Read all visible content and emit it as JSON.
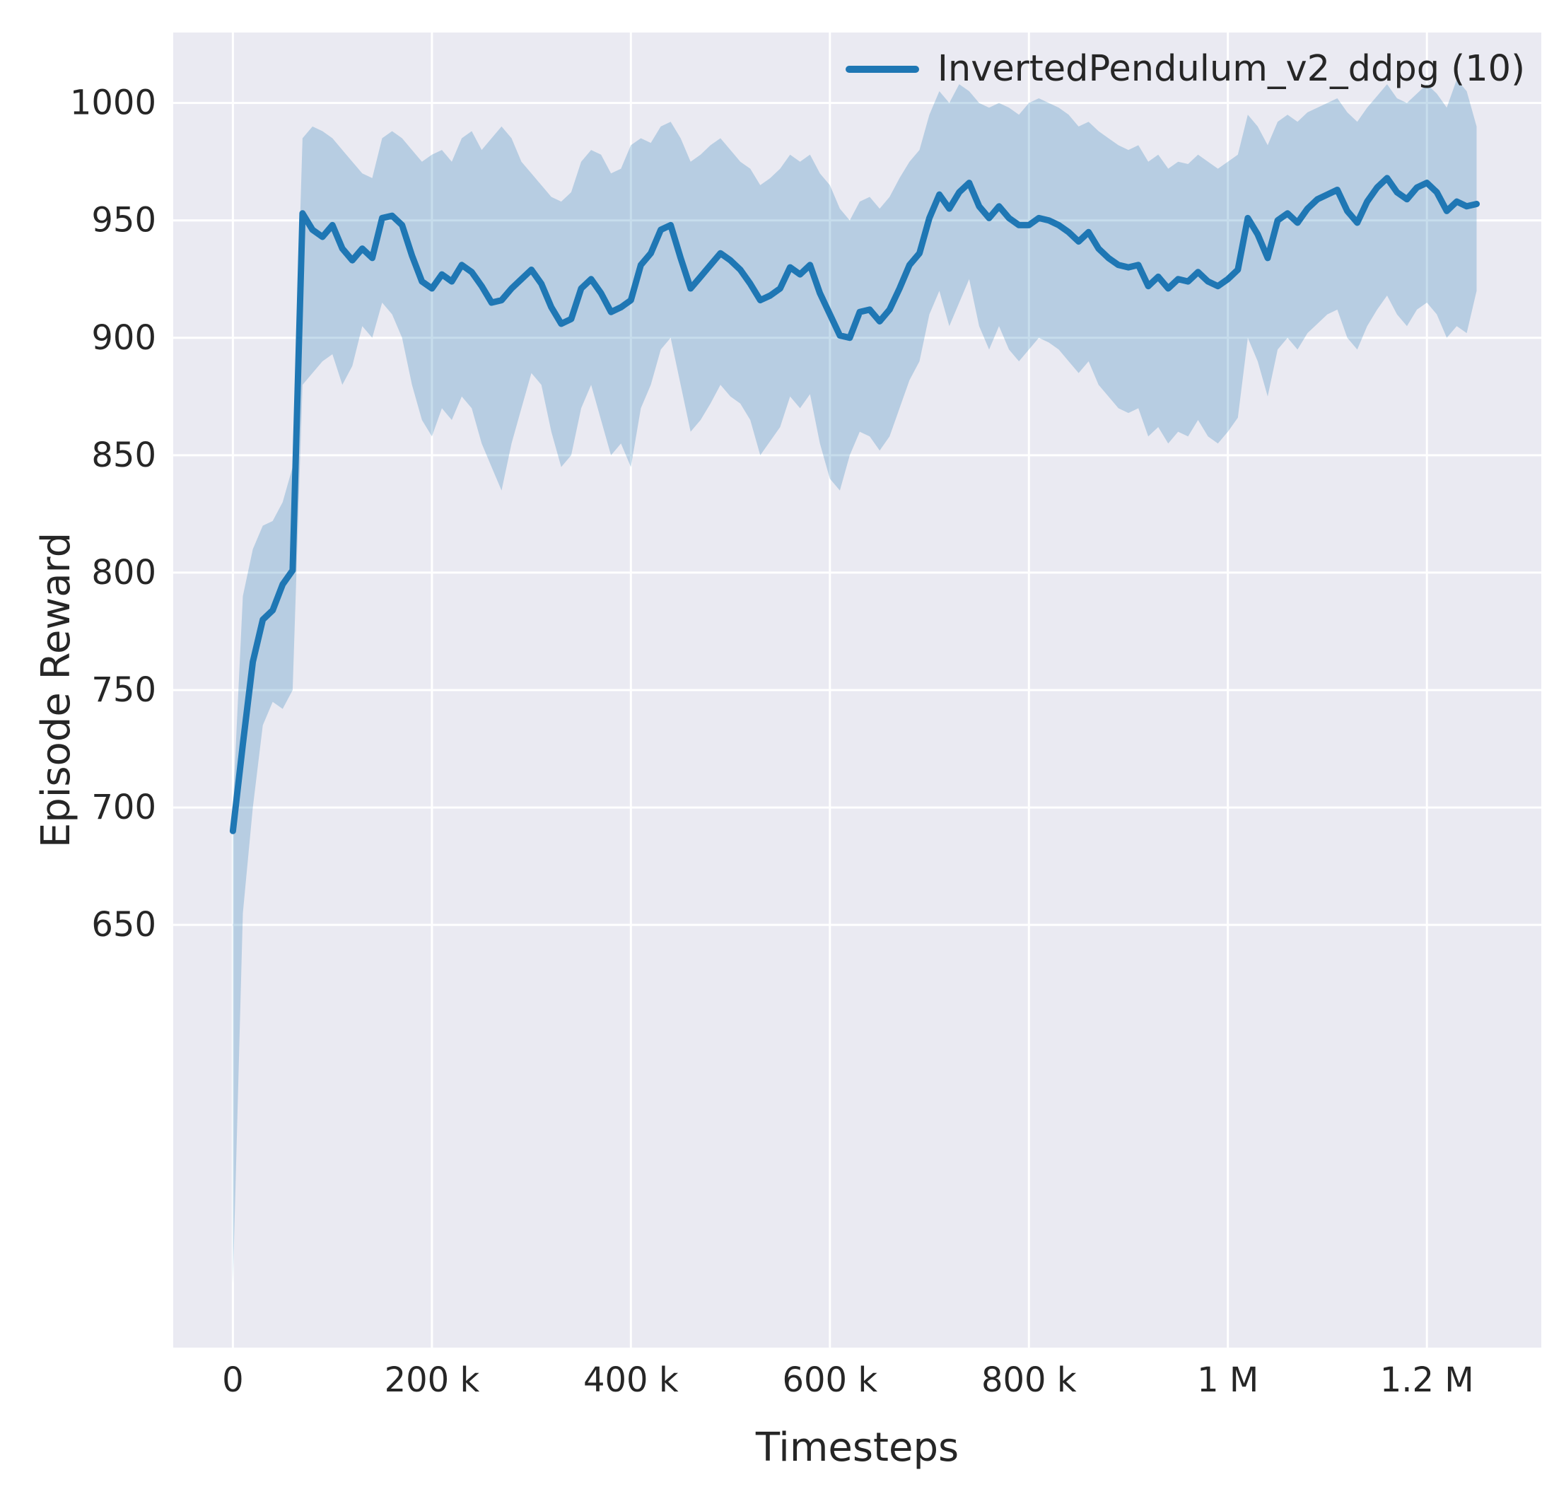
{
  "chart_data": {
    "type": "line",
    "title": "",
    "xlabel": "Timesteps",
    "ylabel": "Episode Reward",
    "grid": true,
    "legend_position": "upper right",
    "background_color": "#eaeaf2",
    "grid_color": "#ffffff",
    "text_color": "#262626",
    "xlim": [
      -60000,
      1315000
    ],
    "ylim": [
      470,
      1030
    ],
    "x_ticks": [
      {
        "value": 0,
        "label": "0"
      },
      {
        "value": 200000,
        "label": "200 k"
      },
      {
        "value": 400000,
        "label": "400 k"
      },
      {
        "value": 600000,
        "label": "600 k"
      },
      {
        "value": 800000,
        "label": "800 k"
      },
      {
        "value": 1000000,
        "label": "1 M"
      },
      {
        "value": 1200000,
        "label": "1.2 M"
      }
    ],
    "y_ticks": [
      {
        "value": 650,
        "label": "650"
      },
      {
        "value": 700,
        "label": "700"
      },
      {
        "value": 750,
        "label": "750"
      },
      {
        "value": 800,
        "label": "800"
      },
      {
        "value": 850,
        "label": "850"
      },
      {
        "value": 900,
        "label": "900"
      },
      {
        "value": 950,
        "label": "950"
      },
      {
        "value": 1000,
        "label": "1000"
      }
    ],
    "series": [
      {
        "name": "InvertedPendulum_v2_ddpg (10)",
        "color": "#1f77b4",
        "band_opacity": 0.25,
        "x": [
          0,
          10000,
          20000,
          30000,
          40000,
          50000,
          60000,
          70000,
          80000,
          90000,
          100000,
          110000,
          120000,
          130000,
          140000,
          150000,
          160000,
          170000,
          180000,
          190000,
          200000,
          210000,
          220000,
          230000,
          240000,
          250000,
          260000,
          270000,
          280000,
          290000,
          300000,
          310000,
          320000,
          330000,
          340000,
          350000,
          360000,
          370000,
          380000,
          390000,
          400000,
          410000,
          420000,
          430000,
          440000,
          450000,
          460000,
          470000,
          480000,
          490000,
          500000,
          510000,
          520000,
          530000,
          540000,
          550000,
          560000,
          570000,
          580000,
          590000,
          600000,
          610000,
          620000,
          630000,
          640000,
          650000,
          660000,
          670000,
          680000,
          690000,
          700000,
          710000,
          720000,
          730000,
          740000,
          750000,
          760000,
          770000,
          780000,
          790000,
          800000,
          810000,
          820000,
          830000,
          840000,
          850000,
          860000,
          870000,
          880000,
          890000,
          900000,
          910000,
          920000,
          930000,
          940000,
          950000,
          960000,
          970000,
          980000,
          990000,
          1000000,
          1010000,
          1020000,
          1030000,
          1040000,
          1050000,
          1060000,
          1070000,
          1080000,
          1090000,
          1100000,
          1110000,
          1120000,
          1130000,
          1140000,
          1150000,
          1160000,
          1170000,
          1180000,
          1190000,
          1200000,
          1210000,
          1220000,
          1230000,
          1240000,
          1250000
        ],
        "mean": [
          690,
          727,
          762,
          780,
          784,
          795,
          801,
          953,
          946,
          943,
          948,
          938,
          933,
          938,
          934,
          951,
          952,
          948,
          935,
          924,
          921,
          927,
          924,
          931,
          928,
          922,
          915,
          916,
          921,
          925,
          929,
          923,
          913,
          906,
          908,
          921,
          925,
          919,
          911,
          913,
          916,
          931,
          936,
          946,
          948,
          934,
          921,
          926,
          931,
          936,
          933,
          929,
          923,
          916,
          918,
          921,
          930,
          927,
          931,
          919,
          910,
          901,
          900,
          911,
          912,
          907,
          912,
          921,
          931,
          936,
          951,
          961,
          955,
          962,
          966,
          956,
          951,
          956,
          951,
          948,
          948,
          951,
          950,
          948,
          945,
          941,
          945,
          938,
          934,
          931,
          930,
          931,
          922,
          926,
          921,
          925,
          924,
          928,
          924,
          922,
          925,
          929,
          951,
          944,
          934,
          950,
          953,
          949,
          955,
          959,
          961,
          963,
          954,
          949,
          958,
          964,
          968,
          962,
          959,
          964,
          966,
          962,
          954,
          958,
          956,
          957
        ],
        "lower": [
          497,
          655,
          700,
          735,
          745,
          742,
          750,
          880,
          885,
          890,
          893,
          880,
          888,
          905,
          900,
          915,
          910,
          900,
          880,
          865,
          858,
          870,
          865,
          875,
          870,
          855,
          845,
          835,
          855,
          870,
          885,
          880,
          860,
          845,
          850,
          870,
          880,
          865,
          850,
          855,
          845,
          870,
          880,
          895,
          900,
          880,
          860,
          865,
          872,
          880,
          875,
          872,
          865,
          850,
          856,
          862,
          875,
          870,
          876,
          855,
          840,
          835,
          850,
          860,
          858,
          852,
          858,
          870,
          882,
          890,
          910,
          920,
          905,
          915,
          925,
          905,
          895,
          905,
          895,
          890,
          895,
          900,
          898,
          895,
          890,
          885,
          890,
          880,
          875,
          870,
          868,
          870,
          858,
          862,
          855,
          860,
          858,
          865,
          858,
          855,
          860,
          866,
          900,
          890,
          875,
          895,
          900,
          895,
          902,
          906,
          910,
          912,
          900,
          895,
          905,
          912,
          918,
          910,
          905,
          912,
          915,
          910,
          900,
          905,
          902,
          920
        ],
        "upper": [
          700,
          790,
          810,
          820,
          822,
          830,
          845,
          985,
          990,
          988,
          985,
          980,
          975,
          970,
          968,
          985,
          988,
          985,
          980,
          975,
          978,
          980,
          975,
          985,
          988,
          980,
          985,
          990,
          985,
          975,
          970,
          965,
          960,
          958,
          962,
          975,
          980,
          978,
          970,
          972,
          982,
          985,
          983,
          990,
          992,
          985,
          975,
          978,
          982,
          985,
          980,
          975,
          972,
          965,
          968,
          972,
          978,
          975,
          978,
          970,
          965,
          955,
          950,
          958,
          960,
          955,
          960,
          968,
          975,
          980,
          995,
          1005,
          1000,
          1008,
          1005,
          1000,
          998,
          1000,
          998,
          995,
          1000,
          1002,
          1000,
          998,
          995,
          990,
          992,
          988,
          985,
          982,
          980,
          982,
          975,
          978,
          972,
          975,
          974,
          978,
          975,
          972,
          975,
          978,
          995,
          990,
          982,
          992,
          995,
          992,
          996,
          998,
          1000,
          1002,
          996,
          992,
          998,
          1003,
          1008,
          1002,
          1000,
          1004,
          1008,
          1004,
          998,
          1010,
          1005,
          990
        ]
      }
    ]
  }
}
